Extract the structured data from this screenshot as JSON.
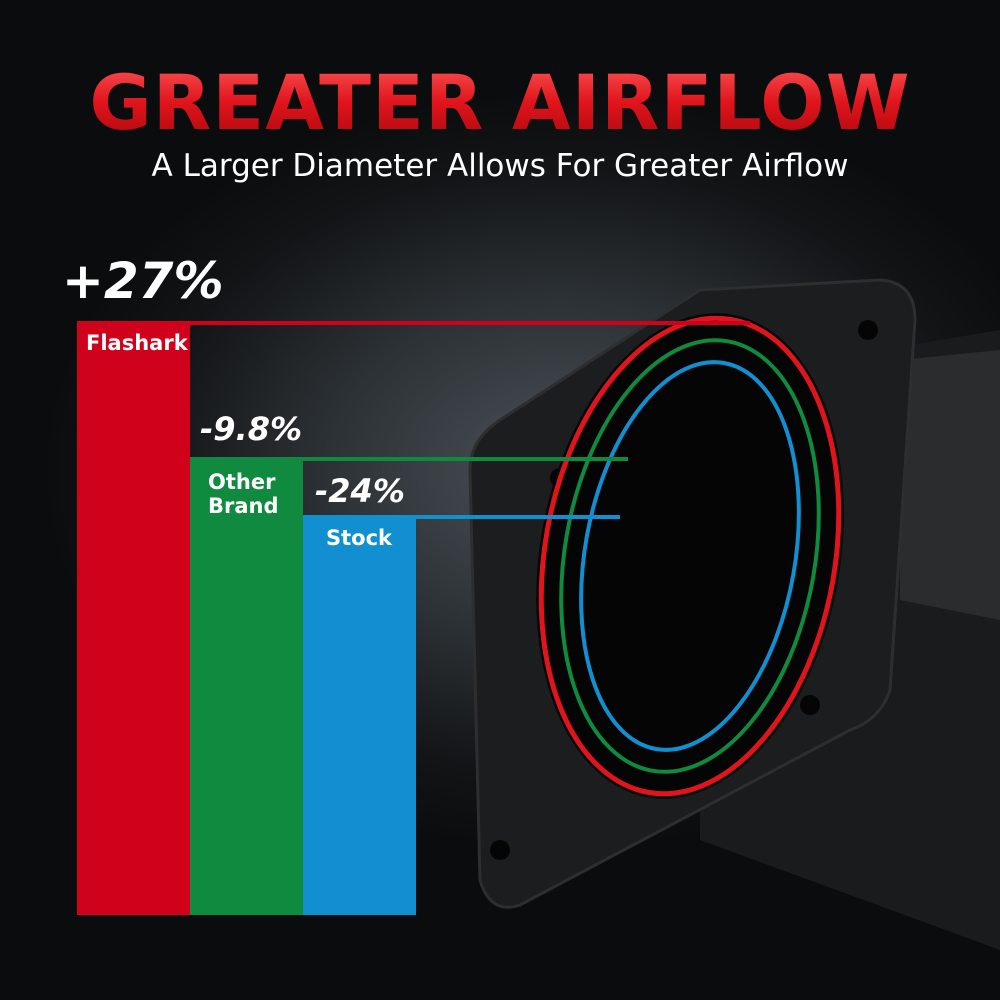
{
  "header": {
    "title": "GREATER AIRFLOW",
    "subtitle": "A Larger Diameter Allows For Greater Airflow"
  },
  "chart_data": {
    "type": "bar",
    "title": "GREATER AIRFLOW",
    "categories": [
      "Flashark",
      "Other Brand",
      "Stock"
    ],
    "values": [
      27,
      -9.8,
      -24
    ],
    "value_labels": [
      "+27%",
      "-9.8%",
      "-24%"
    ],
    "colors": [
      "#d0021b",
      "#0f8a3f",
      "#128fd0"
    ],
    "grid": false
  }
}
